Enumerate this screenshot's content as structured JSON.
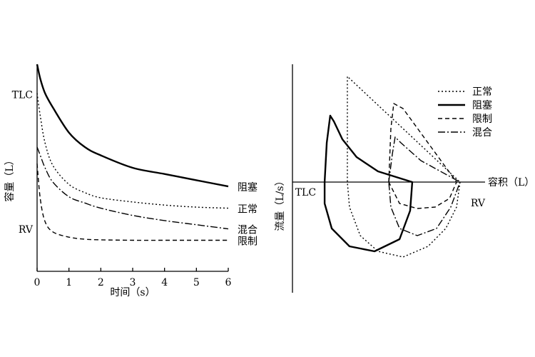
{
  "chart_data": [
    {
      "type": "line",
      "x_label": "时间（s）",
      "y_label": "容量（L）",
      "x": [
        0,
        0.1,
        0.25,
        0.5,
        1,
        1.5,
        2,
        3,
        4,
        5,
        6
      ],
      "xlim": [
        0,
        6
      ],
      "xticks": [
        0,
        1,
        2,
        3,
        4,
        5,
        6
      ],
      "ylim": [
        0,
        10
      ],
      "yticks": [
        {
          "value": 8.5,
          "label": "TLC"
        },
        {
          "value": 2,
          "label": "RV"
        }
      ],
      "series": [
        {
          "name": "阻塞",
          "color": "#000000",
          "line_style": "solid",
          "values": [
            10,
            9.3,
            8.6,
            7.9,
            6.7,
            6.0,
            5.6,
            5.0,
            4.7,
            4.4,
            4.1
          ]
        },
        {
          "name": "正常",
          "color": "#000000",
          "line_style": "dotted",
          "values": [
            8.6,
            7.5,
            6.2,
            5.1,
            4.2,
            3.8,
            3.55,
            3.35,
            3.2,
            3.1,
            3.05
          ]
        },
        {
          "name": "混合",
          "color": "#000000",
          "line_style": "dashdot",
          "values": [
            6.0,
            5.6,
            5.0,
            4.3,
            3.6,
            3.3,
            3.05,
            2.7,
            2.45,
            2.25,
            2.05
          ]
        },
        {
          "name": "限制",
          "color": "#000000",
          "line_style": "dashed",
          "values": [
            5.2,
            3.5,
            2.4,
            1.9,
            1.65,
            1.55,
            1.52,
            1.5,
            1.5,
            1.5,
            1.5
          ]
        }
      ]
    },
    {
      "type": "loop",
      "x_label": "容积（L）",
      "y_label": "流量（L/s）",
      "xlim": [
        0,
        10
      ],
      "ylim": [
        -8,
        8
      ],
      "xticks": [
        {
          "value": 1.67,
          "label": "TLC"
        },
        {
          "value": 8.7,
          "label": "RV"
        }
      ],
      "legend": "upper right",
      "series": [
        {
          "name": "正常",
          "color": "#000000",
          "line_style": "dotted",
          "x": [
            8.7,
            8.52,
            7.96,
            7.04,
            5.74,
            4.44,
            3.52,
            2.96,
            2.85,
            2.85,
            8.7
          ],
          "y": [
            0,
            -1.75,
            -3.25,
            -4.5,
            -5.25,
            -4.85,
            -3.75,
            -1.75,
            0,
            7.4,
            0
          ]
        },
        {
          "name": "阻塞",
          "color": "#000000",
          "line_style": "solid",
          "x": [
            1.67,
            1.78,
            1.96,
            2.15,
            2.59,
            3.33,
            4.44,
            6.22,
            6.11,
            5.56,
            4.26,
            2.96,
            2.04,
            1.67,
            1.67
          ],
          "y": [
            0,
            2.75,
            4.65,
            4.25,
            3.0,
            1.75,
            0.75,
            0,
            -2,
            -4,
            -4.85,
            -4.5,
            -3.25,
            -1.5,
            0
          ]
        },
        {
          "name": "限制",
          "color": "#000000",
          "line_style": "dashed",
          "x": [
            5,
            5.11,
            5.26,
            5.74,
            8.52,
            8.15,
            7.41,
            6.48,
            5.56,
            5
          ],
          "y": [
            0,
            3.75,
            5.5,
            5.15,
            0,
            -1.15,
            -1.75,
            -1.85,
            -1.5,
            0
          ]
        },
        {
          "name": "混合",
          "color": "#000000",
          "line_style": "dashdot",
          "x": [
            5,
            5.19,
            5.33,
            5.63,
            6.67,
            8.7,
            8.22,
            7.48,
            6.48,
            5.56,
            5.11,
            5
          ],
          "y": [
            0,
            2,
            3.15,
            2.75,
            1.5,
            0,
            -1.75,
            -3.25,
            -3.75,
            -3.25,
            -1.75,
            0
          ]
        }
      ]
    }
  ]
}
